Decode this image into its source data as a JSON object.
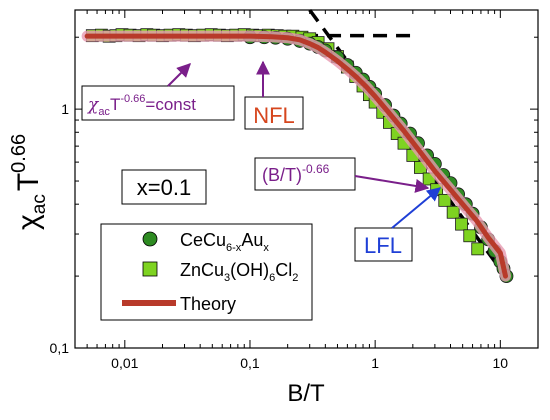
{
  "chart_data": {
    "type": "scatter",
    "x_scale": "log",
    "y_scale": "log",
    "xlim": [
      0.004,
      20
    ],
    "ylim": [
      0.1,
      2.6
    ],
    "xlabel": "B/T",
    "ylabel": {
      "base": "χ",
      "sub": "ac",
      "main": "T",
      "sup": "0.66"
    },
    "x_ticks": [
      {
        "value": 0.01,
        "label": "0,01"
      },
      {
        "value": 0.1,
        "label": "0,1"
      },
      {
        "value": 1,
        "label": "1"
      },
      {
        "value": 10,
        "label": "10"
      }
    ],
    "y_ticks": [
      {
        "value": 0.1,
        "label": "0,1"
      },
      {
        "value": 1,
        "label": "1"
      }
    ],
    "series": [
      {
        "name": "CeCu6-xAux",
        "label_parts": {
          "a": "CeCu",
          "b": "6-x",
          "c": "Au",
          "d": "x"
        },
        "marker": "circle",
        "color": "#2e8b22",
        "points": [
          [
            0.1,
            2.0
          ],
          [
            0.13,
            2.0
          ],
          [
            0.16,
            1.99
          ],
          [
            0.2,
            1.97
          ],
          [
            0.25,
            1.93
          ],
          [
            0.3,
            1.88
          ],
          [
            0.35,
            1.82
          ],
          [
            0.4,
            1.76
          ],
          [
            0.5,
            1.65
          ],
          [
            0.6,
            1.53
          ],
          [
            0.7,
            1.42
          ],
          [
            0.8,
            1.33
          ],
          [
            0.9,
            1.24
          ],
          [
            1.0,
            1.16
          ],
          [
            1.2,
            1.04
          ],
          [
            1.4,
            0.94
          ],
          [
            1.6,
            0.87
          ],
          [
            1.9,
            0.79
          ],
          [
            2.2,
            0.72
          ],
          [
            2.6,
            0.64
          ],
          [
            3.0,
            0.59
          ],
          [
            3.5,
            0.53
          ],
          [
            4.0,
            0.49
          ],
          [
            4.6,
            0.44
          ],
          [
            5.3,
            0.4
          ],
          [
            6.0,
            0.365
          ],
          [
            7.0,
            0.32
          ],
          [
            8.0,
            0.285
          ],
          [
            9.0,
            0.255
          ],
          [
            10.0,
            0.23
          ],
          [
            10.6,
            0.215
          ],
          [
            11.2,
            0.2
          ]
        ]
      },
      {
        "name": "ZnCu3(OH)6Cl2",
        "label_parts": {
          "a": "ZnCu",
          "b": "3",
          "c": "(OH)",
          "d": "6",
          "e": "Cl",
          "f": "2"
        },
        "marker": "square",
        "color": "#7ed321",
        "points": [
          [
            0.0055,
            2.03
          ],
          [
            0.0065,
            2.04
          ],
          [
            0.0075,
            2.02
          ],
          [
            0.0085,
            2.03
          ],
          [
            0.0095,
            2.05
          ],
          [
            0.011,
            2.04
          ],
          [
            0.013,
            2.03
          ],
          [
            0.015,
            2.05
          ],
          [
            0.017,
            2.04
          ],
          [
            0.02,
            2.03
          ],
          [
            0.023,
            2.04
          ],
          [
            0.027,
            2.05
          ],
          [
            0.031,
            2.04
          ],
          [
            0.036,
            2.03
          ],
          [
            0.042,
            2.04
          ],
          [
            0.049,
            2.05
          ],
          [
            0.057,
            2.04
          ],
          [
            0.066,
            2.03
          ],
          [
            0.077,
            2.04
          ],
          [
            0.09,
            2.05
          ],
          [
            0.105,
            2.04
          ],
          [
            0.12,
            2.03
          ],
          [
            0.14,
            2.04
          ],
          [
            0.165,
            2.03
          ],
          [
            0.19,
            2.02
          ],
          [
            0.22,
            2.02
          ],
          [
            0.26,
            2.0
          ],
          [
            0.3,
            1.97
          ],
          [
            0.35,
            1.9
          ],
          [
            0.42,
            1.79
          ],
          [
            0.5,
            1.66
          ],
          [
            0.6,
            1.5
          ],
          [
            0.7,
            1.37
          ],
          [
            0.8,
            1.25
          ],
          [
            0.9,
            1.15
          ],
          [
            1.0,
            1.07
          ],
          [
            1.15,
            0.97
          ],
          [
            1.3,
            0.88
          ],
          [
            1.5,
            0.79
          ],
          [
            1.7,
            0.72
          ],
          [
            2.0,
            0.64
          ],
          [
            2.3,
            0.57
          ],
          [
            2.7,
            0.51
          ],
          [
            3.1,
            0.46
          ],
          [
            3.6,
            0.415
          ],
          [
            4.2,
            0.37
          ],
          [
            4.9,
            0.33
          ],
          [
            5.7,
            0.295
          ],
          [
            6.6,
            0.26
          ]
        ]
      },
      {
        "name": "Theory",
        "marker": "line",
        "color": "#b83a2a",
        "points": [
          [
            0.005,
            2.02
          ],
          [
            0.02,
            2.02
          ],
          [
            0.05,
            2.02
          ],
          [
            0.1,
            2.02
          ],
          [
            0.15,
            2.01
          ],
          [
            0.2,
            1.99
          ],
          [
            0.25,
            1.95
          ],
          [
            0.3,
            1.88
          ],
          [
            0.35,
            1.81
          ],
          [
            0.4,
            1.73
          ],
          [
            0.5,
            1.59
          ],
          [
            0.6,
            1.47
          ],
          [
            0.7,
            1.37
          ],
          [
            0.85,
            1.24
          ],
          [
            1.0,
            1.13
          ],
          [
            1.3,
            0.96
          ],
          [
            1.7,
            0.81
          ],
          [
            2.2,
            0.68
          ],
          [
            3.0,
            0.55
          ],
          [
            4.0,
            0.46
          ],
          [
            5.0,
            0.4
          ],
          [
            6.5,
            0.34
          ],
          [
            8.0,
            0.29
          ],
          [
            10.0,
            0.25
          ],
          [
            11.0,
            0.2
          ]
        ]
      }
    ],
    "reference_lines": [
      {
        "name": "NFL asymptote",
        "style": "dashed",
        "color": "#000000",
        "points": [
          [
            0.006,
            2.03
          ],
          [
            2.0,
            2.03
          ]
        ]
      },
      {
        "name": "LFL asymptote",
        "style": "dashed",
        "color": "#000000",
        "points": [
          [
            0.3,
            2.6
          ],
          [
            11.0,
            0.2
          ]
        ]
      }
    ],
    "annotations": {
      "const_label": {
        "a": "χ",
        "b": "ac",
        "c": "T",
        "d": "-0.66",
        "e": "=const",
        "color": "#7a1f8a"
      },
      "nfl": "NFL",
      "power_label": {
        "a": "(B/T)",
        "b": "-0.66",
        "color": "#7a1f8a"
      },
      "lfl": "LFL",
      "x_label": "x=0.1"
    }
  }
}
